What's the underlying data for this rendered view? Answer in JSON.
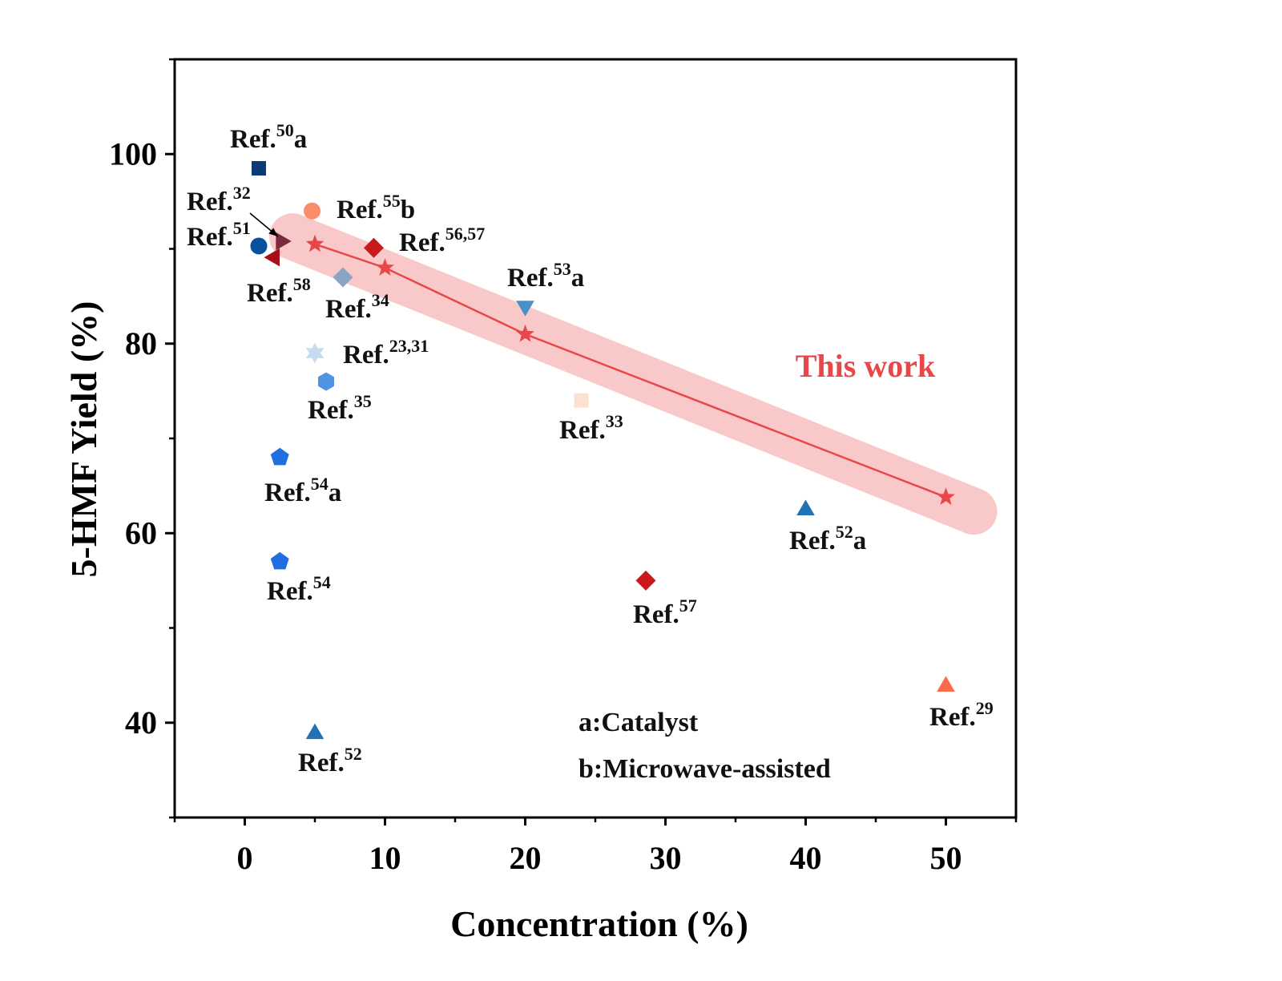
{
  "chart_data": {
    "type": "scatter",
    "xlabel": "Concentration (%)",
    "ylabel": "5-HMF Yield (%)",
    "xlim": [
      -5,
      55
    ],
    "ylim": [
      30,
      110
    ],
    "xticks": [
      0,
      10,
      20,
      30,
      40,
      50
    ],
    "xtick_labels": [
      "0",
      "10",
      "20",
      "30",
      "40",
      "50"
    ],
    "yticks": [
      40,
      60,
      80,
      100
    ],
    "ytick_labels": [
      "40",
      "60",
      "80",
      "100"
    ],
    "grid": false,
    "points": [
      {
        "ref": "50",
        "suffix": "a",
        "x": 1,
        "y": 98.5,
        "marker": "square",
        "color": "#0b3a75"
      },
      {
        "ref": "32",
        "suffix": "",
        "x": 2.7,
        "y": 90.8,
        "marker": "triangle-right",
        "color": "#7a2a3a"
      },
      {
        "ref": "51",
        "suffix": "",
        "x": 1,
        "y": 90.3,
        "marker": "circle",
        "color": "#08519c"
      },
      {
        "ref": "58",
        "suffix": "",
        "x": 2,
        "y": 89.1,
        "marker": "triangle-left",
        "color": "#a50f15"
      },
      {
        "ref": "55",
        "suffix": "b",
        "x": 4.8,
        "y": 94,
        "marker": "circle",
        "color": "#fc8d6a"
      },
      {
        "ref": "56,57",
        "suffix": "",
        "x": 9.2,
        "y": 90.1,
        "marker": "diamond",
        "color": "#cb181d"
      },
      {
        "ref": "34",
        "suffix": "",
        "x": 7,
        "y": 87,
        "marker": "diamond",
        "color": "#8aa4c6"
      },
      {
        "ref": "53",
        "suffix": "a",
        "x": 20,
        "y": 83.8,
        "marker": "triangle-down",
        "color": "#4a90c8"
      },
      {
        "ref": "23,31",
        "suffix": "",
        "x": 5,
        "y": 79,
        "marker": "star6",
        "color": "#c6dbef"
      },
      {
        "ref": "35",
        "suffix": "",
        "x": 5.8,
        "y": 76,
        "marker": "hexagon",
        "color": "#4f94e3"
      },
      {
        "ref": "33",
        "suffix": "",
        "x": 24,
        "y": 74,
        "marker": "square",
        "color": "#fde0d0"
      },
      {
        "ref": "54",
        "suffix": "a",
        "x": 2.5,
        "y": 68,
        "marker": "pentagon",
        "color": "#1f6fe0"
      },
      {
        "ref": "54",
        "suffix": "",
        "x": 2.5,
        "y": 57,
        "marker": "pentagon",
        "color": "#1f6fe0"
      },
      {
        "ref": "52",
        "suffix": "a",
        "x": 40,
        "y": 62.6,
        "marker": "triangle-up",
        "color": "#2171b5"
      },
      {
        "ref": "57",
        "suffix": "",
        "x": 28.6,
        "y": 55,
        "marker": "diamond",
        "color": "#cb181d"
      },
      {
        "ref": "52",
        "suffix": "",
        "x": 5,
        "y": 39,
        "marker": "triangle-up",
        "color": "#2171b5"
      },
      {
        "ref": "29",
        "suffix": "",
        "x": 50,
        "y": 44,
        "marker": "triangle-up",
        "color": "#fb6a4a"
      }
    ],
    "series": [
      {
        "name": "This work",
        "x": [
          5,
          10,
          20,
          50
        ],
        "y": [
          90.5,
          88,
          81,
          63.8
        ],
        "marker": "star",
        "color": "#e8474a",
        "highlight_color": "#f7b3b3"
      }
    ],
    "annotations": [
      "a:Catalyst",
      "b:Microwave-assisted"
    ],
    "this_work_label": "This work"
  }
}
